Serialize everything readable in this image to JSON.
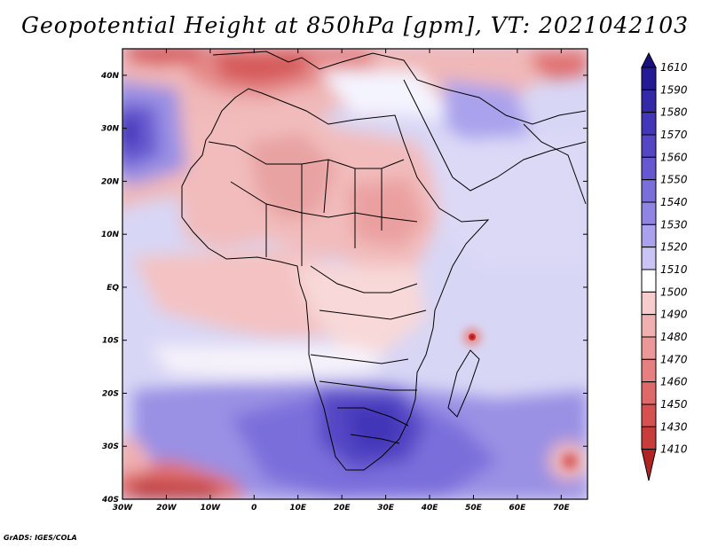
{
  "title": "Geopotential Height at 850hPa [gpm], VT: 2021042103",
  "credit": "GrADS: IGES/COLA",
  "map": {
    "lon_range": [
      -30,
      76
    ],
    "lat_range": [
      -40,
      45
    ],
    "lon_ticks": [
      {
        "value": -30,
        "label": "30W"
      },
      {
        "value": -20,
        "label": "20W"
      },
      {
        "value": -10,
        "label": "10W"
      },
      {
        "value": 0,
        "label": "0"
      },
      {
        "value": 10,
        "label": "10E"
      },
      {
        "value": 20,
        "label": "20E"
      },
      {
        "value": 30,
        "label": "30E"
      },
      {
        "value": 40,
        "label": "40E"
      },
      {
        "value": 50,
        "label": "50E"
      },
      {
        "value": 60,
        "label": "60E"
      },
      {
        "value": 70,
        "label": "70E"
      }
    ],
    "lat_ticks": [
      {
        "value": 40,
        "label": "40N"
      },
      {
        "value": 30,
        "label": "30N"
      },
      {
        "value": 20,
        "label": "20N"
      },
      {
        "value": 10,
        "label": "10N"
      },
      {
        "value": 0,
        "label": "EQ"
      },
      {
        "value": -10,
        "label": "10S"
      },
      {
        "value": -20,
        "label": "20S"
      },
      {
        "value": -30,
        "label": "30S"
      },
      {
        "value": -40,
        "label": "40S"
      }
    ]
  },
  "colorbar": {
    "levels": [
      {
        "label": "1610",
        "color": "#241a96"
      },
      {
        "label": "1590",
        "color": "#3328a8"
      },
      {
        "label": "1580",
        "color": "#4336b8"
      },
      {
        "label": "1570",
        "color": "#5446c4"
      },
      {
        "label": "1560",
        "color": "#6658d0"
      },
      {
        "label": "1550",
        "color": "#7a6edb"
      },
      {
        "label": "1540",
        "color": "#9185e3"
      },
      {
        "label": "1530",
        "color": "#aaa2ec"
      },
      {
        "label": "1520",
        "color": "#c9c4f3"
      },
      {
        "label": "1510",
        "color": "#ffffff"
      },
      {
        "label": "1500",
        "color": "#f6cccc"
      },
      {
        "label": "1490",
        "color": "#f1b0b0"
      },
      {
        "label": "1480",
        "color": "#ec9898"
      },
      {
        "label": "1470",
        "color": "#e68080"
      },
      {
        "label": "1460",
        "color": "#df6868"
      },
      {
        "label": "1450",
        "color": "#d65050"
      },
      {
        "label": "1430",
        "color": "#c83c3c"
      },
      {
        "label": "1410",
        "color": "#b02424"
      }
    ],
    "top_color": "#1a1080"
  }
}
